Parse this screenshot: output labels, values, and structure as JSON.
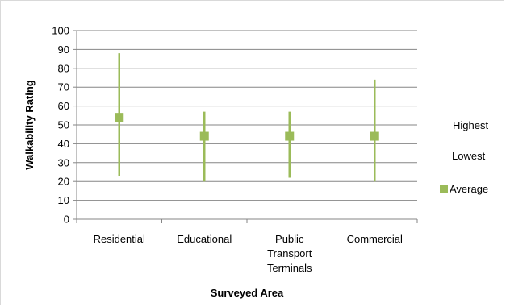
{
  "chart_data": {
    "type": "high-low-average",
    "categories": [
      "Residential",
      "Educational",
      "Public Transport Terminals",
      "Commercial"
    ],
    "category_label_lines": [
      [
        "Residential"
      ],
      [
        "Educational"
      ],
      [
        "Public",
        "Transport",
        "Terminals"
      ],
      [
        "Commercial"
      ]
    ],
    "series": [
      {
        "name": "Highest",
        "values": [
          88,
          57,
          57,
          74
        ]
      },
      {
        "name": "Lowest",
        "values": [
          23,
          20,
          22,
          20
        ]
      },
      {
        "name": "Average",
        "values": [
          54,
          44,
          44,
          44
        ]
      }
    ],
    "xlabel": "Surveyed Area",
    "ylabel": "Walkability Rating",
    "ylim": [
      0,
      100
    ],
    "yticks": [
      0,
      10,
      20,
      30,
      40,
      50,
      60,
      70,
      80,
      90,
      100
    ],
    "grid": true,
    "legend_position": "right",
    "colors": {
      "range_line": "#9bbb59",
      "average_marker": "#9bbb59",
      "gridline": "#868686",
      "axis": "#868686"
    }
  }
}
